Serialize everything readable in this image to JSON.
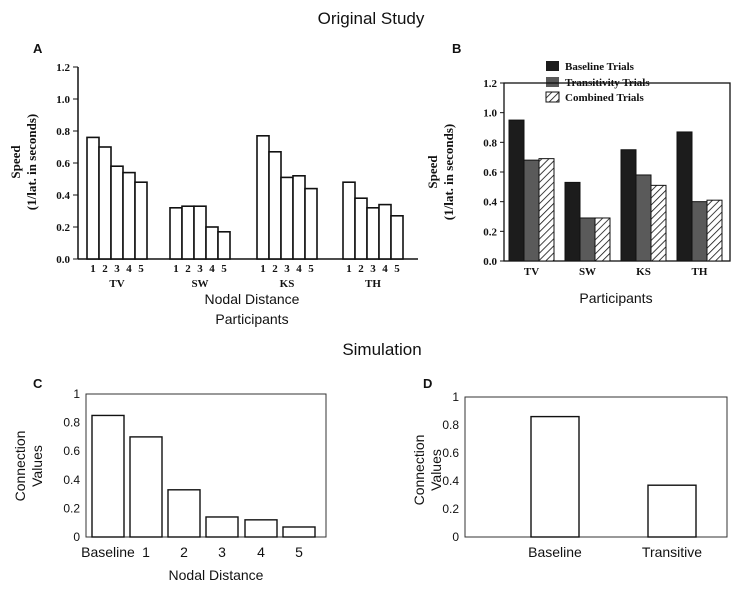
{
  "sections": {
    "original_title": "Original Study",
    "simulation_title": "Simulation"
  },
  "chart_data": [
    {
      "panel": "A",
      "type": "bar",
      "ylabel_line1": "Speed",
      "ylabel_line2": "(1/lat. in seconds)",
      "xlabel_line1": "Nodal Distance",
      "xlabel_line2": "Participants",
      "ylim": [
        0,
        1.2
      ],
      "yticks": [
        "0.0",
        "0.2",
        "0.4",
        "0.6",
        "0.8",
        "1.0",
        "1.2"
      ],
      "groups": [
        {
          "name": "TV",
          "labels": [
            "1",
            "2",
            "3",
            "4",
            "5"
          ],
          "values": [
            0.76,
            0.7,
            0.58,
            0.54,
            0.48
          ]
        },
        {
          "name": "SW",
          "labels": [
            "1",
            "2",
            "3",
            "4",
            "5"
          ],
          "values": [
            0.32,
            0.33,
            0.33,
            0.2,
            0.17
          ]
        },
        {
          "name": "KS",
          "labels": [
            "1",
            "2",
            "3",
            "4",
            "5"
          ],
          "values": [
            0.77,
            0.67,
            0.51,
            0.52,
            0.44
          ]
        },
        {
          "name": "TH",
          "labels": [
            "1",
            "2",
            "3",
            "4",
            "5"
          ],
          "values": [
            0.48,
            0.38,
            0.32,
            0.34,
            0.27
          ]
        }
      ]
    },
    {
      "panel": "B",
      "type": "bar",
      "ylabel_line1": "Speed",
      "ylabel_line2": "(1/lat. in seconds)",
      "xlabel": "Participants",
      "ylim": [
        0,
        1.2
      ],
      "yticks": [
        "0.0",
        "0.2",
        "0.4",
        "0.6",
        "0.8",
        "1.0",
        "1.2"
      ],
      "categories": [
        "TV",
        "SW",
        "KS",
        "TH"
      ],
      "series": [
        {
          "name": "Baseline Trials",
          "color": "#1c1c1c",
          "values": [
            0.95,
            0.53,
            0.75,
            0.87
          ]
        },
        {
          "name": "Transitivity Trials",
          "color": "#5a5a5a",
          "values": [
            0.68,
            0.29,
            0.58,
            0.4
          ]
        },
        {
          "name": "Combined Trials",
          "color": "hatch",
          "values": [
            0.69,
            0.29,
            0.51,
            0.41
          ]
        }
      ]
    },
    {
      "panel": "C",
      "type": "bar",
      "ylabel_line1": "Connection",
      "ylabel_line2": "Values",
      "xlabel": "Nodal Distance",
      "ylim": [
        0,
        1
      ],
      "yticks": [
        "0",
        "0.2",
        "0.4",
        "0.6",
        "0.8",
        "1"
      ],
      "categories": [
        "Baseline",
        "1",
        "2",
        "3",
        "4",
        "5"
      ],
      "values": [
        0.85,
        0.7,
        0.33,
        0.14,
        0.12,
        0.07
      ]
    },
    {
      "panel": "D",
      "type": "bar",
      "ylabel_line1": "Connection",
      "ylabel_line2": "Values",
      "ylim": [
        0,
        1
      ],
      "yticks": [
        "0",
        "0.2",
        "0.4",
        "0.6",
        "0.8",
        "1"
      ],
      "categories": [
        "Baseline",
        "Transitive"
      ],
      "values": [
        0.86,
        0.37
      ]
    }
  ]
}
